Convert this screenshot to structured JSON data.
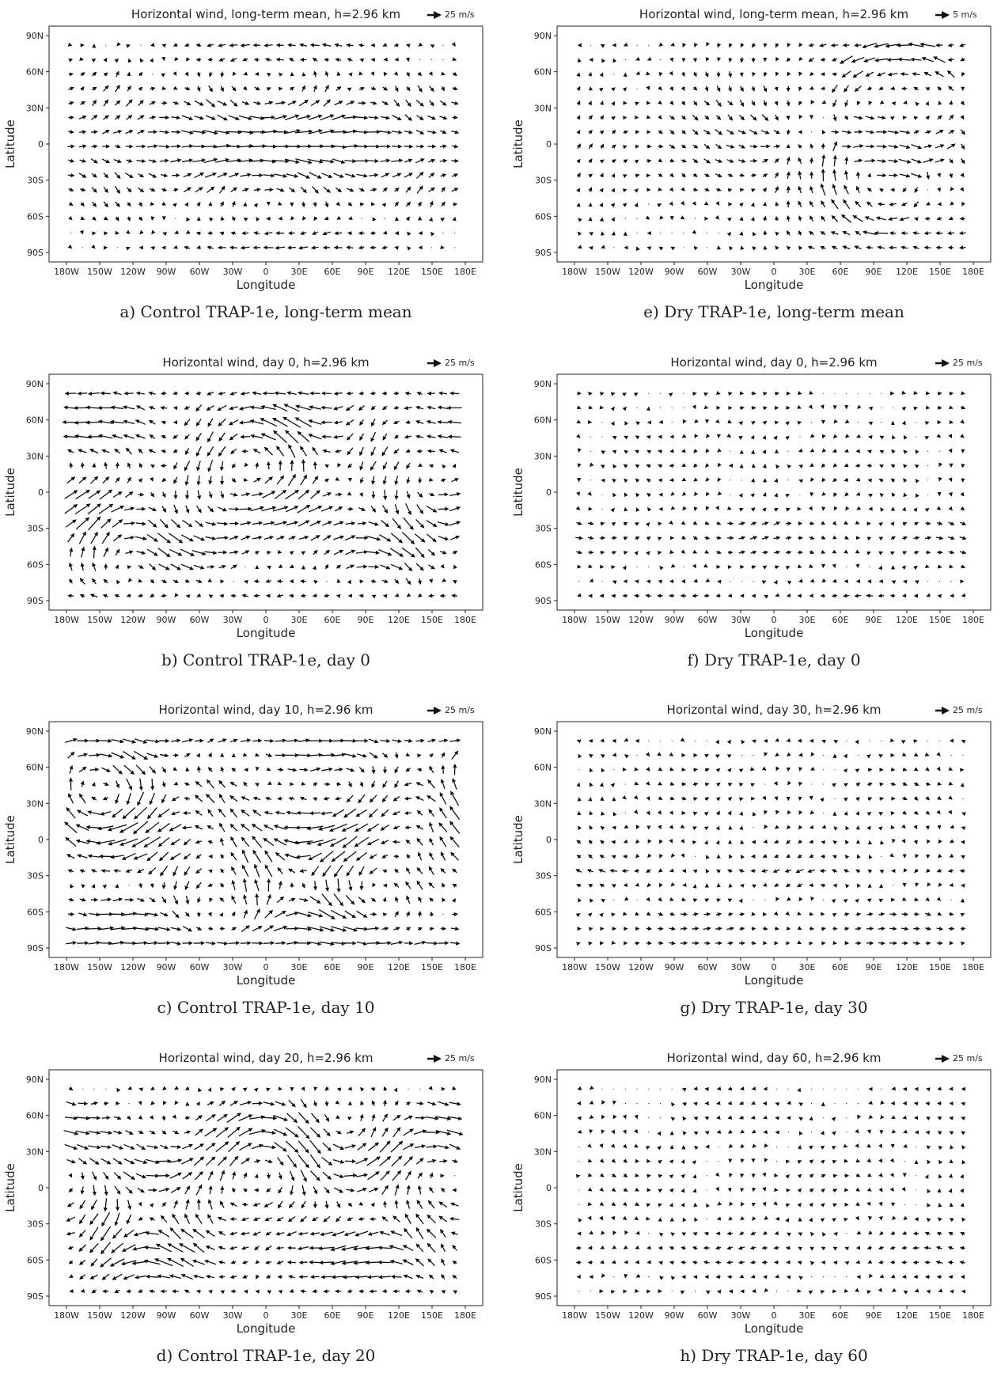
{
  "figure": {
    "x_ticks": [
      "180W",
      "150W",
      "120W",
      "90W",
      "60W",
      "30W",
      "0",
      "30E",
      "60E",
      "90E",
      "120E",
      "150E",
      "180E"
    ],
    "y_ticks": [
      "90N",
      "60N",
      "30N",
      "0",
      "30S",
      "60S",
      "90S"
    ],
    "xlabel": "Longitude",
    "ylabel": "Latitude"
  },
  "chart_data": [
    {
      "id": "a",
      "type": "quiver",
      "title": "Horizontal wind, long-term mean, h=2.96 km",
      "key_label": "25 m/s",
      "caption": "a) Control TRAP-1e, long-term mean",
      "xlabel": "Longitude",
      "ylabel": "Latitude",
      "xlim": [
        -180,
        180
      ],
      "ylim": [
        -90,
        90
      ],
      "pattern": "control_mean",
      "amp": 1.0
    },
    {
      "id": "e",
      "type": "quiver",
      "title": "Horizontal wind, long-term mean, h=2.96 km",
      "key_label": "5 m/s",
      "caption": "e) Dry TRAP-1e, long-term mean",
      "xlabel": "Longitude",
      "ylabel": "Latitude",
      "xlim": [
        -180,
        180
      ],
      "ylim": [
        -90,
        90
      ],
      "pattern": "dry_mean",
      "amp": 0.8
    },
    {
      "id": "b",
      "type": "quiver",
      "title": "Horizontal wind, day 0, h=2.96 km",
      "key_label": "25 m/s",
      "caption": "b) Control TRAP-1e, day 0",
      "xlabel": "Longitude",
      "ylabel": "Latitude",
      "xlim": [
        -180,
        180
      ],
      "ylim": [
        -90,
        90
      ],
      "pattern": "control_day",
      "amp": 1.0,
      "seed": 1
    },
    {
      "id": "f",
      "type": "quiver",
      "title": "Horizontal wind, day 0, h=2.96 km",
      "key_label": "25 m/s",
      "caption": "f) Dry TRAP-1e, day 0",
      "xlabel": "Longitude",
      "ylabel": "Latitude",
      "xlim": [
        -180,
        180
      ],
      "ylim": [
        -90,
        90
      ],
      "pattern": "dry_day",
      "amp": 0.5,
      "seed": 2
    },
    {
      "id": "c",
      "type": "quiver",
      "title": "Horizontal wind, day 10, h=2.96 km",
      "key_label": "25 m/s",
      "caption": "c) Control TRAP-1e, day 10",
      "xlabel": "Longitude",
      "ylabel": "Latitude",
      "xlim": [
        -180,
        180
      ],
      "ylim": [
        -90,
        90
      ],
      "pattern": "control_day",
      "amp": 1.1,
      "seed": 3
    },
    {
      "id": "g",
      "type": "quiver",
      "title": "Horizontal wind, day 30, h=2.96 km",
      "key_label": "25 m/s",
      "caption": "g) Dry TRAP-1e, day 30",
      "xlabel": "Longitude",
      "ylabel": "Latitude",
      "xlim": [
        -180,
        180
      ],
      "ylim": [
        -90,
        90
      ],
      "pattern": "dry_day",
      "amp": 0.55,
      "seed": 4
    },
    {
      "id": "d",
      "type": "quiver",
      "title": "Horizontal wind, day 20, h=2.96 km",
      "key_label": "25 m/s",
      "caption": "d) Control TRAP-1e, day 20",
      "xlabel": "Longitude",
      "ylabel": "Latitude",
      "xlim": [
        -180,
        180
      ],
      "ylim": [
        -90,
        90
      ],
      "pattern": "control_day",
      "amp": 1.05,
      "seed": 5
    },
    {
      "id": "h",
      "type": "quiver",
      "title": "Horizontal wind, day 60, h=2.96 km",
      "key_label": "25 m/s",
      "caption": "h) Dry TRAP-1e, day 60",
      "xlabel": "Longitude",
      "ylabel": "Latitude",
      "xlim": [
        -180,
        180
      ],
      "ylim": [
        -90,
        90
      ],
      "pattern": "dry_day",
      "amp": 0.45,
      "seed": 6
    }
  ]
}
